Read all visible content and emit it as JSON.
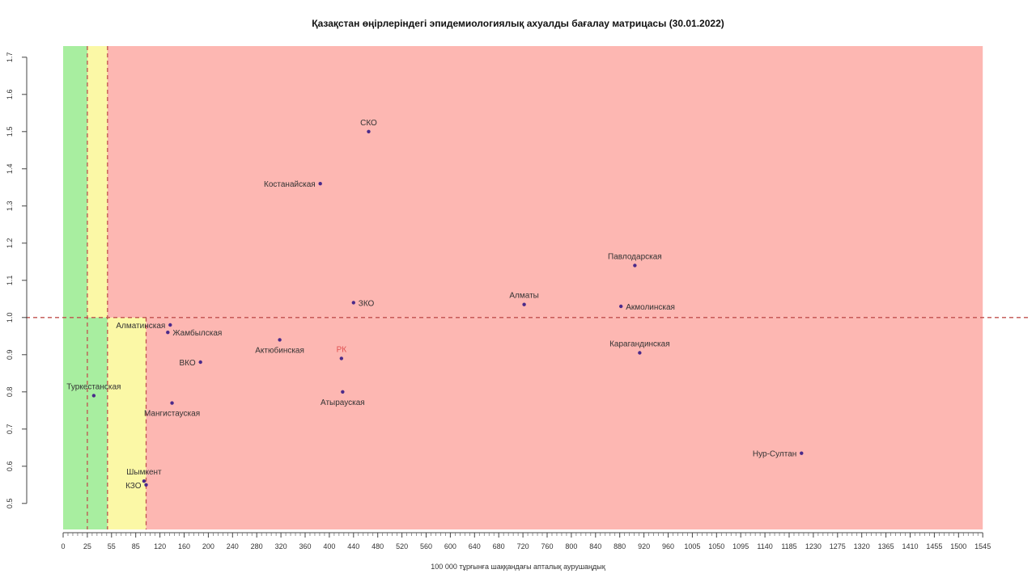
{
  "chart_data": {
    "type": "scatter",
    "title": "Қазақстан өңірлеріндегі эпидемиологиялық ахуалды бағалау матрицасы  (30.01.2022)",
    "xlabel": "100 000 тұрғынға шаққандағы апталық аурушаңдық",
    "ylabel": "",
    "x_ticks": [
      "0",
      "25",
      "55",
      "85",
      "120",
      "160",
      "200",
      "240",
      "280",
      "320",
      "360",
      "400",
      "440",
      "480",
      "520",
      "560",
      "600",
      "640",
      "680",
      "720",
      "760",
      "800",
      "840",
      "880",
      "920",
      "960",
      "1005",
      "1050",
      "1095",
      "1140",
      "1185",
      "1230",
      "1275",
      "1320",
      "1365",
      "1410",
      "1455",
      "1500",
      "1545"
    ],
    "y_ticks": [
      0.5,
      0.6,
      0.7,
      0.8,
      0.9,
      1.0,
      1.1,
      1.2,
      1.3,
      1.4,
      1.5,
      1.6,
      1.7
    ],
    "ylim": [
      0.43,
      1.73
    ],
    "grid": false,
    "zones": [
      {
        "color": "#a8eea0",
        "x": [
          0,
          50
        ],
        "y": [
          0.43,
          1.73
        ]
      },
      {
        "color": "#fbf8a6",
        "x": [
          25,
          50
        ],
        "y": [
          1.0,
          1.73
        ]
      },
      {
        "color": "#fbf8a6",
        "x": [
          50,
          100
        ],
        "y": [
          0.43,
          1.0
        ]
      },
      {
        "color": "#fdb7b2",
        "x": [
          50,
          1545
        ],
        "y": [
          1.0,
          1.73
        ]
      },
      {
        "color": "#fdb7b2",
        "x": [
          100,
          1545
        ],
        "y": [
          0.43,
          1.0
        ]
      }
    ],
    "threshold_lines": {
      "color": "#c0504d",
      "x": [
        25,
        50,
        100
      ],
      "y": [
        1.0
      ]
    },
    "points": [
      {
        "label": "СКО",
        "x": 465,
        "y": 1.5,
        "label_pos": "above"
      },
      {
        "label": "Костанайская",
        "x": 385,
        "y": 1.36,
        "label_pos": "left"
      },
      {
        "label": "Павлодарская",
        "x": 905,
        "y": 1.14,
        "label_pos": "above"
      },
      {
        "label": "ЗКО",
        "x": 440,
        "y": 1.04,
        "label_pos": "right"
      },
      {
        "label": "Алматы",
        "x": 722,
        "y": 1.035,
        "label_pos": "above"
      },
      {
        "label": "Акмолинская",
        "x": 882,
        "y": 1.03,
        "label_pos": "right"
      },
      {
        "label": "Алматинская",
        "x": 137,
        "y": 0.98,
        "label_pos": "left"
      },
      {
        "label": "Жамбылская",
        "x": 133,
        "y": 0.96,
        "label_pos": "right"
      },
      {
        "label": "Актюбинская",
        "x": 318,
        "y": 0.94,
        "label_pos": "below"
      },
      {
        "label": "РК",
        "x": 420,
        "y": 0.89,
        "label_pos": "above",
        "highlight": true
      },
      {
        "label": "Карагандинская",
        "x": 913,
        "y": 0.905,
        "label_pos": "above"
      },
      {
        "label": "ВКО",
        "x": 187,
        "y": 0.88,
        "label_pos": "left"
      },
      {
        "label": "Туркестанская",
        "x": 33,
        "y": 0.79,
        "label_pos": "above"
      },
      {
        "label": "Атырауская",
        "x": 422,
        "y": 0.8,
        "label_pos": "below"
      },
      {
        "label": "Мангистауская",
        "x": 140,
        "y": 0.77,
        "label_pos": "below"
      },
      {
        "label": "Нур-Султан",
        "x": 1208,
        "y": 0.635,
        "label_pos": "left"
      },
      {
        "label": "Шымкент",
        "x": 97,
        "y": 0.56,
        "label_pos": "above"
      },
      {
        "label": "КЗО",
        "x": 100,
        "y": 0.55,
        "label_pos": "left"
      }
    ]
  }
}
